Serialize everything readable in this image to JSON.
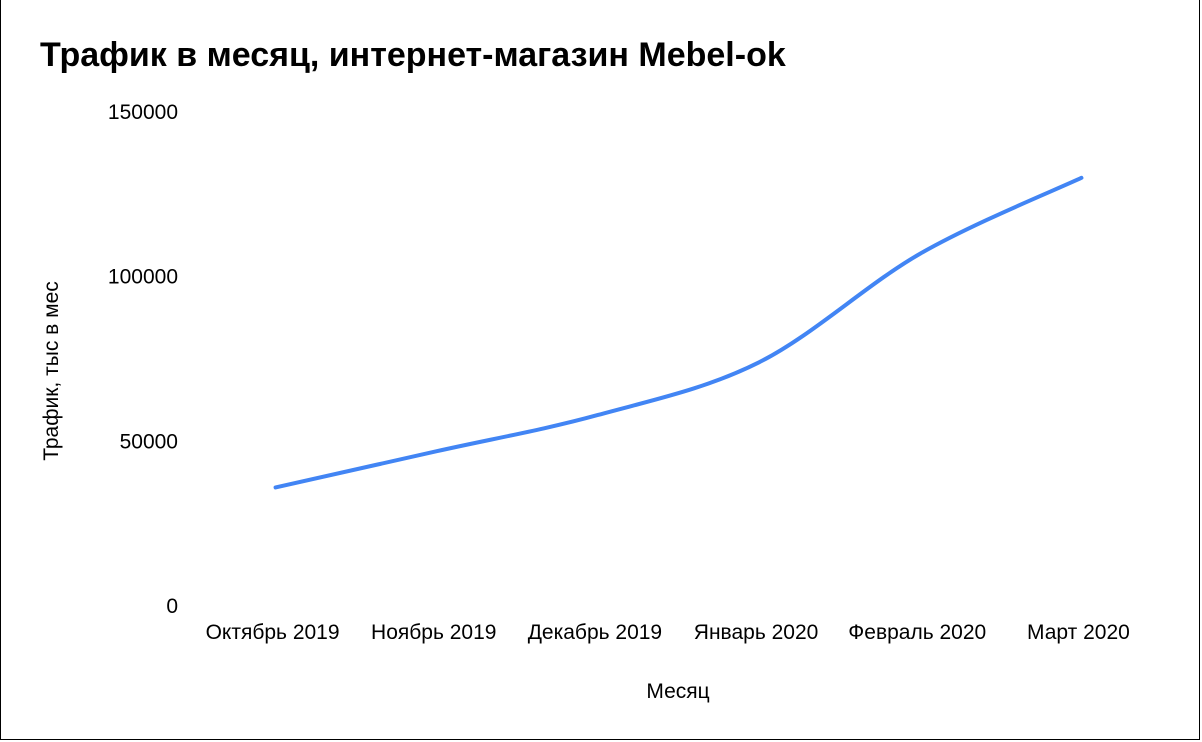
{
  "chart_data": {
    "type": "line",
    "title": "Трафик в месяц, интернет-магазин Mebel-ok",
    "xlabel": "Месяц",
    "ylabel": "Трафик, тыс в мес",
    "categories": [
      "Октябрь 2019",
      "Ноябрь 2019",
      "Декабрь 2019",
      "Январь 2020",
      "Февраль 2020",
      "Март 2020"
    ],
    "yticks": [
      "0",
      "50000",
      "100000",
      "150000"
    ],
    "ylim": [
      0,
      150000
    ],
    "series": [
      {
        "values": [
          36000,
          47000,
          58000,
          74000,
          107000,
          130000
        ]
      }
    ],
    "grid": false,
    "legend": "none",
    "line_color": "#4285f4"
  }
}
